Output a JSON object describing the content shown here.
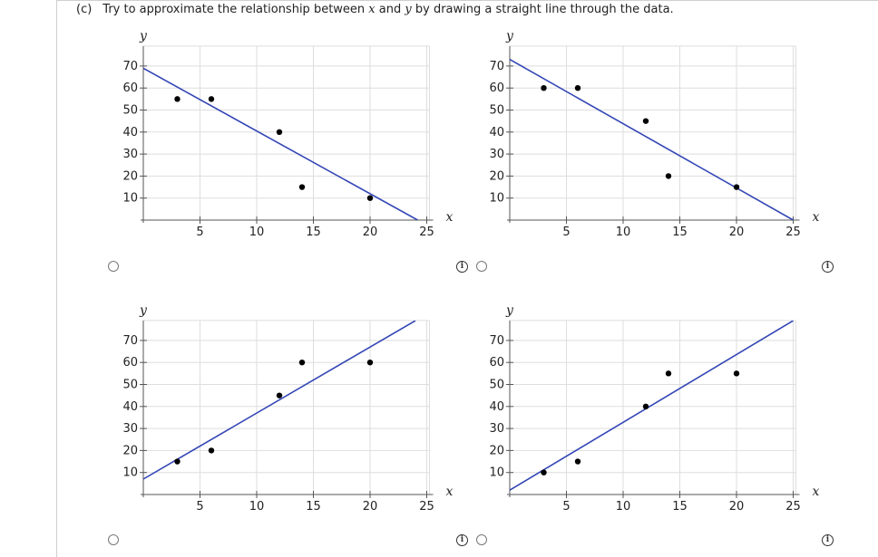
{
  "question": {
    "part": "(c)",
    "text_before": "Try to approximate the relationship between ",
    "var_x": "x",
    "text_mid": " and ",
    "var_y": "y",
    "text_after": " by drawing a straight line through the data."
  },
  "info_symbol": "i",
  "chart_data": [
    {
      "type": "scatter",
      "xlabel": "x",
      "ylabel": "y",
      "xlim": [
        0,
        25
      ],
      "ylim": [
        0,
        70
      ],
      "xticks": [
        5,
        10,
        15,
        20,
        25
      ],
      "yticks": [
        10,
        20,
        30,
        40,
        50,
        60,
        70
      ],
      "grid": true,
      "points": [
        [
          3,
          55
        ],
        [
          6,
          55
        ],
        [
          12,
          40
        ],
        [
          14,
          15
        ],
        [
          20,
          10
        ]
      ],
      "line": [
        [
          0,
          69
        ],
        [
          24.2,
          0
        ]
      ],
      "line_color": "#3346b5"
    },
    {
      "type": "scatter",
      "xlabel": "x",
      "ylabel": "y",
      "xlim": [
        0,
        25
      ],
      "ylim": [
        0,
        70
      ],
      "xticks": [
        5,
        10,
        15,
        20,
        25
      ],
      "yticks": [
        10,
        20,
        30,
        40,
        50,
        60,
        70
      ],
      "grid": true,
      "points": [
        [
          3,
          60
        ],
        [
          6,
          60
        ],
        [
          12,
          45
        ],
        [
          14,
          20
        ],
        [
          20,
          15
        ]
      ],
      "line": [
        [
          0,
          73
        ],
        [
          25,
          0
        ]
      ],
      "line_color": "#3346b5"
    },
    {
      "type": "scatter",
      "xlabel": "x",
      "ylabel": "y",
      "xlim": [
        0,
        25
      ],
      "ylim": [
        0,
        70
      ],
      "xticks": [
        5,
        10,
        15,
        20,
        25
      ],
      "yticks": [
        10,
        20,
        30,
        40,
        50,
        60,
        70
      ],
      "grid": true,
      "points": [
        [
          3,
          15
        ],
        [
          6,
          20
        ],
        [
          12,
          45
        ],
        [
          14,
          60
        ],
        [
          20,
          60
        ]
      ],
      "line": [
        [
          0,
          7
        ],
        [
          24,
          79
        ]
      ],
      "line_color": "#3346b5"
    },
    {
      "type": "scatter",
      "xlabel": "x",
      "ylabel": "y",
      "xlim": [
        0,
        25
      ],
      "ylim": [
        0,
        70
      ],
      "xticks": [
        5,
        10,
        15,
        20,
        25
      ],
      "yticks": [
        10,
        20,
        30,
        40,
        50,
        60,
        70
      ],
      "grid": true,
      "points": [
        [
          3,
          10
        ],
        [
          6,
          15
        ],
        [
          12,
          40
        ],
        [
          14,
          55
        ],
        [
          20,
          55
        ]
      ],
      "line": [
        [
          0,
          2
        ],
        [
          25,
          79
        ]
      ],
      "line_color": "#3346b5"
    }
  ]
}
